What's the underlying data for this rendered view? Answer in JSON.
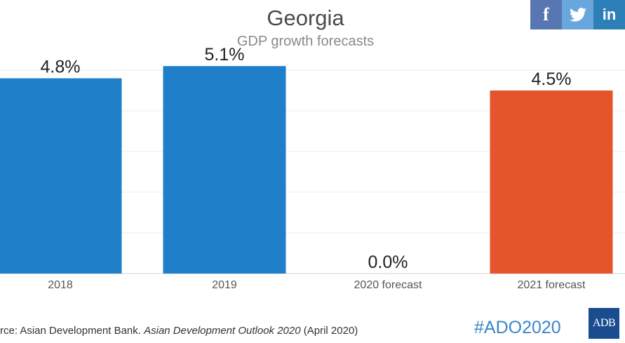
{
  "social": {
    "facebook_glyph": "f",
    "linkedin_glyph": "in",
    "colors": {
      "facebook": "#5877b2",
      "twitter": "#6aa6de",
      "linkedin": "#2d7fb8"
    }
  },
  "chart_data": {
    "type": "bar",
    "title": "Georgia",
    "subtitle": "GDP growth forecasts",
    "categories": [
      "2018",
      "2019",
      "2020 forecast",
      "2021 forecast"
    ],
    "values": [
      4.8,
      5.1,
      0.0,
      4.5
    ],
    "value_labels": [
      "4.8%",
      "5.1%",
      "0.0%",
      "4.5%"
    ],
    "colors": [
      "#1f7fc8",
      "#1f7fc8",
      "#1f7fc8",
      "#e4552c"
    ],
    "xlabel": "",
    "ylabel": "",
    "ylim": [
      0,
      5
    ],
    "grid": true,
    "legend": "none"
  },
  "footer": {
    "source_prefix": "rce: Asian Development Bank. ",
    "source_italic": "Asian Development Outlook 2020",
    "source_suffix": " (April 2020)",
    "hashtag": "#ADO2020",
    "logo_text": "ADB"
  }
}
